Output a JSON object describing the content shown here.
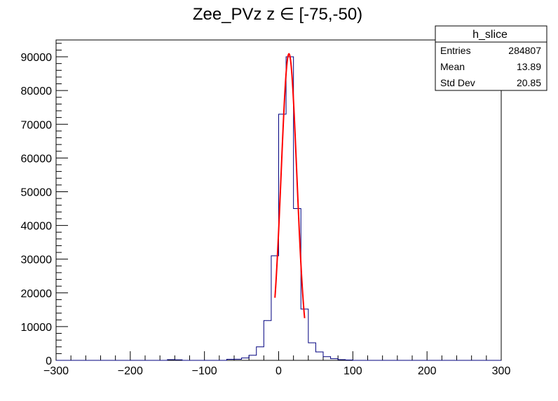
{
  "chart_data": {
    "type": "bar",
    "title": "Zee_PVz z ∈ [-75,-50)",
    "xlabel": "",
    "ylabel": "",
    "xlim": [
      -300,
      300
    ],
    "ylim": [
      0,
      95000
    ],
    "grid": false,
    "x_tick_labels": [
      "−300",
      "−200",
      "−100",
      "0",
      "100",
      "200",
      "300"
    ],
    "y_tick_labels": [
      "0",
      "10000",
      "20000",
      "30000",
      "40000",
      "50000",
      "60000",
      "70000",
      "80000",
      "90000"
    ],
    "bin_width": 10,
    "bin_edges_start": -300,
    "histogram": {
      "name": "h_slice",
      "color": "#00007f",
      "bins": [
        {
          "x": -150,
          "value": 200
        },
        {
          "x": -140,
          "value": 150
        },
        {
          "x": -70,
          "value": 300
        },
        {
          "x": -60,
          "value": 350
        },
        {
          "x": -50,
          "value": 700
        },
        {
          "x": -40,
          "value": 1500
        },
        {
          "x": -30,
          "value": 4000
        },
        {
          "x": -20,
          "value": 11800
        },
        {
          "x": -10,
          "value": 31000
        },
        {
          "x": 0,
          "value": 73000
        },
        {
          "x": 10,
          "value": 90000
        },
        {
          "x": 20,
          "value": 45000
        },
        {
          "x": 30,
          "value": 15200
        },
        {
          "x": 40,
          "value": 5200
        },
        {
          "x": 50,
          "value": 2500
        },
        {
          "x": 60,
          "value": 1100
        },
        {
          "x": 70,
          "value": 500
        },
        {
          "x": 80,
          "value": 200
        },
        {
          "x": 90,
          "value": 100
        }
      ]
    },
    "fit": {
      "color": "#ff0000",
      "function": "gaus",
      "amplitude": 90900,
      "mean": 13.89,
      "sigma": 10.6,
      "x_range": [
        -5,
        35
      ]
    },
    "stats_box": {
      "title": "h_slice",
      "rows": [
        {
          "label": "Entries",
          "value": "284807"
        },
        {
          "label": "Mean",
          "value": "13.89"
        },
        {
          "label": "Std Dev",
          "value": "20.85"
        }
      ]
    }
  }
}
